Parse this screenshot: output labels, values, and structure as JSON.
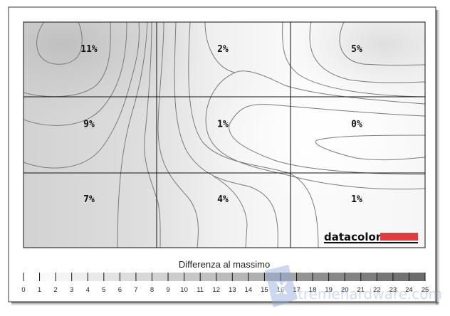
{
  "chart_data": {
    "type": "heatmap",
    "title": "",
    "legend_title": "Differenza al massimo",
    "rows": 3,
    "cols": 3,
    "values": [
      [
        11,
        2,
        5
      ],
      [
        9,
        1,
        0
      ],
      [
        7,
        4,
        1
      ]
    ],
    "labels": [
      [
        "11%",
        "2%",
        "5%"
      ],
      [
        "9%",
        "1%",
        "0%"
      ],
      [
        "7%",
        "4%",
        "1%"
      ]
    ],
    "unit": "%",
    "scale_range": [
      0,
      25
    ],
    "scale_ticks": [
      "0",
      "1",
      "2",
      "3",
      "4",
      "5",
      "6",
      "7",
      "8",
      "9",
      "10",
      "11",
      "12",
      "13",
      "14",
      "15",
      "16",
      "17",
      "18",
      "19",
      "20",
      "21",
      "22",
      "23",
      "24",
      "25"
    ],
    "colormap": "grayscale: white (0) to dark gray (25)",
    "contour_lines": true,
    "grid": true
  },
  "logos": {
    "brand": "datacolor",
    "brand_color": "#e03c3c",
    "watermark": "XtremeHardware.com"
  }
}
